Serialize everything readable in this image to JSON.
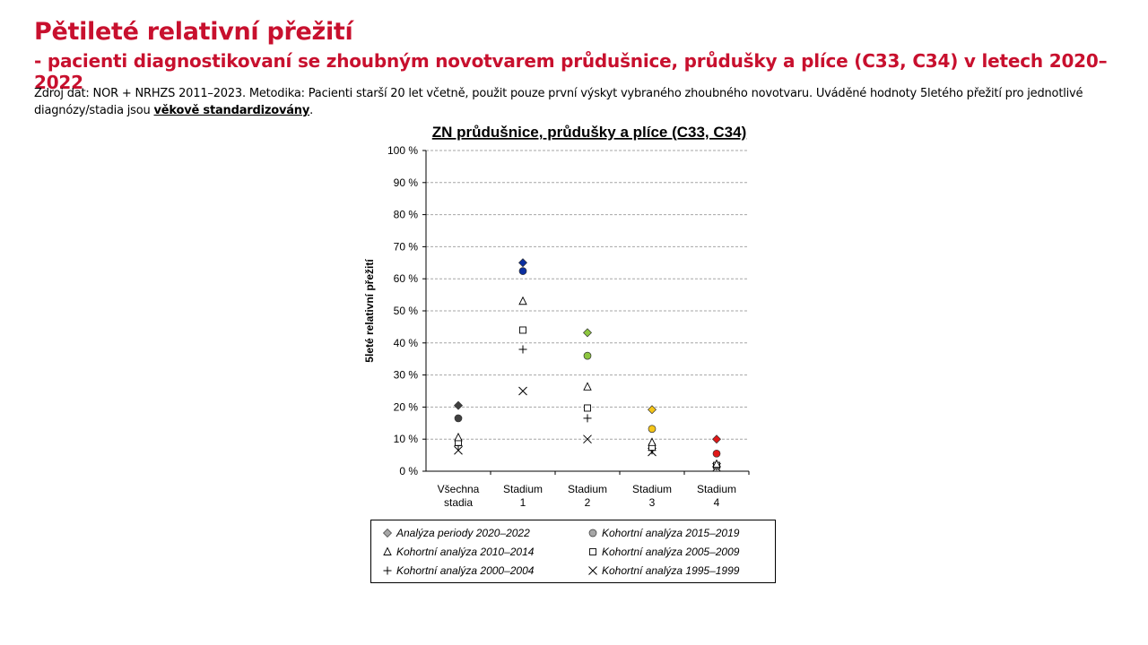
{
  "header": {
    "title": "Pětileté relativní přežití",
    "subtitle": "- pacienti diagnostikovaní se zhoubným novotvarem průdušnice, průdušky a plíce (C33, C34) v letech 2020–2022",
    "source_prefix": "Zdroj dat: NOR + NRHZS 2011–2023. Metodika: Pacienti starší 20 let včetně, použit pouze první výskyt vybraného zhoubného novotvaru. Uváděné hodnoty 5letého přežití pro jednotlivé diagnózy/stadia jsou ",
    "source_emphasis": "věkově standardizovány",
    "source_suffix": "."
  },
  "chart_data": {
    "type": "scatter",
    "title": "ZN průdušnice, průdušky a plíce (C33, C34)",
    "ylabel": "5leté relativní přežití",
    "xlabel": "",
    "ylim": [
      0,
      100
    ],
    "y_ticks": [
      "0 %",
      "10 %",
      "20 %",
      "30 %",
      "40 %",
      "50 %",
      "60 %",
      "70 %",
      "80 %",
      "90 %",
      "100 %"
    ],
    "grid": true,
    "categories": [
      [
        "Všechna",
        "stadia"
      ],
      [
        "Stadium",
        "1"
      ],
      [
        "Stadium",
        "2"
      ],
      [
        "Stadium",
        "3"
      ],
      [
        "Stadium",
        "4"
      ]
    ],
    "category_colors": [
      "#404040",
      "#0b2fa0",
      "#8dc63f",
      "#f5c518",
      "#e01818"
    ],
    "series": [
      {
        "name": "Analýza periody 2020–2022",
        "marker": "diamond",
        "values": [
          20.5,
          65,
          43.2,
          19.2,
          10
        ]
      },
      {
        "name": "Kohortní analýza 2015–2019",
        "marker": "circle",
        "values": [
          16.5,
          62.4,
          36,
          13.2,
          5.5
        ]
      },
      {
        "name": "Kohortní analýza 2010–2014",
        "marker": "triangle",
        "values": [
          10.5,
          53,
          26.3,
          9,
          2.2
        ]
      },
      {
        "name": "Kohortní analýza 2005–2009",
        "marker": "square",
        "values": [
          9,
          44,
          19.7,
          7.5,
          1.8
        ]
      },
      {
        "name": "Kohortní analýza 2000–2004",
        "marker": "plus",
        "values": [
          8,
          38,
          16.5,
          6.5,
          1.5
        ]
      },
      {
        "name": "Kohortní analýza 1995–1999",
        "marker": "x",
        "values": [
          6.5,
          25,
          10,
          6,
          1.2
        ]
      }
    ],
    "legend_position": "bottom",
    "legend_marker_colors": [
      "#a6a6a6",
      "#a6a6a6",
      "#ffffff",
      "#ffffff",
      "#000000",
      "#000000"
    ]
  }
}
